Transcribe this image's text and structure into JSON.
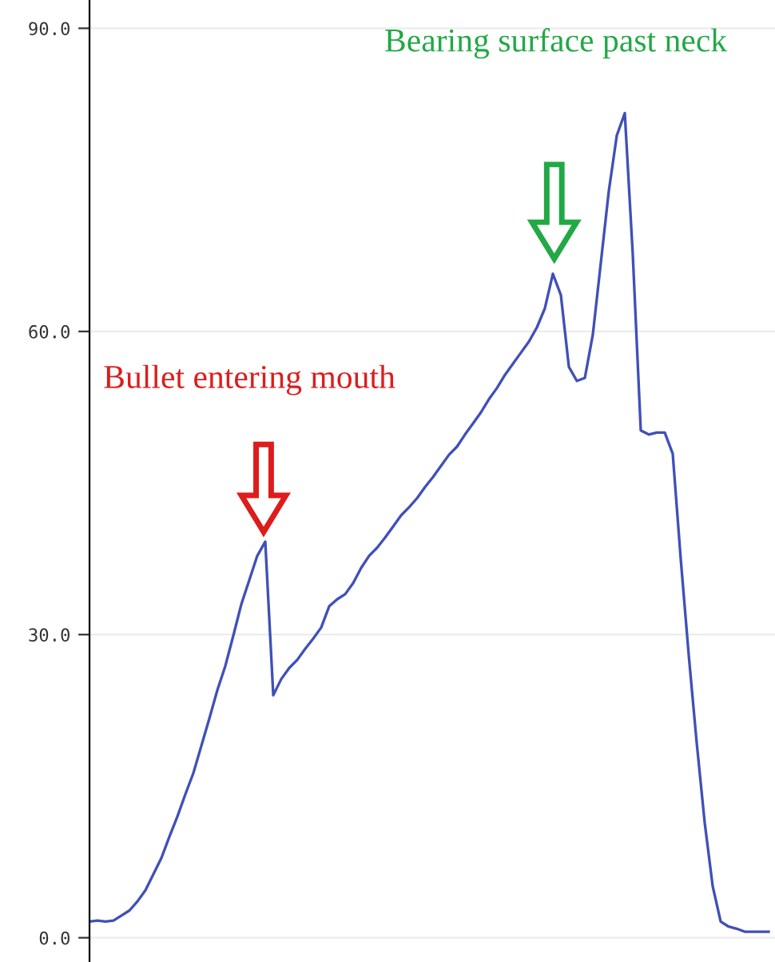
{
  "chart_data": {
    "type": "line",
    "categories": [
      null,
      null,
      null,
      null,
      null,
      null,
      null,
      null,
      null,
      null,
      null,
      null,
      null,
      null,
      null,
      null,
      null,
      null,
      null,
      null,
      null,
      null,
      null,
      null,
      null,
      null,
      null,
      null,
      null,
      null,
      null,
      null,
      null,
      null,
      null,
      null,
      null,
      null,
      null,
      null,
      null,
      null,
      null,
      null,
      null,
      null,
      null,
      null,
      null,
      null,
      null,
      null,
      null,
      null,
      null,
      null,
      null,
      null,
      null,
      null,
      null,
      null,
      null,
      null,
      null,
      null,
      null,
      null,
      null,
      null,
      null,
      null,
      null,
      null,
      null,
      null,
      null,
      null,
      null,
      null,
      null,
      null,
      null,
      null,
      null,
      null
    ],
    "series": [
      {
        "color": "#4050b8",
        "values": [
          1.6,
          1.7,
          1.6,
          1.7,
          2.2,
          2.7,
          3.6,
          4.7,
          6.3,
          7.9,
          10,
          12,
          14.2,
          16.3,
          19,
          21.7,
          24.5,
          26.9,
          29.9,
          33,
          35.4,
          37.8,
          39.2,
          24,
          25.6,
          26.7,
          27.5,
          28.6,
          29.6,
          30.7,
          32.8,
          33.5,
          34,
          35.1,
          36.6,
          37.8,
          38.6,
          39.6,
          40.7,
          41.8,
          42.6,
          43.5,
          44.6,
          45.6,
          46.7,
          47.8,
          48.6,
          49.8,
          50.9,
          52,
          53.3,
          54.4,
          55.7,
          56.8,
          57.9,
          59,
          60.4,
          62.3,
          65.7,
          63.6,
          56.5,
          55.1,
          55.4,
          59.7,
          66.8,
          73.9,
          79.4,
          81.6,
          67.6,
          50.2,
          49.8,
          50,
          50,
          47.9,
          37.5,
          28,
          19.3,
          11.4,
          5.1,
          1.6,
          1.1,
          0.9,
          0.6,
          0.6,
          0.6,
          0.6
        ]
      }
    ],
    "ylim": [
      -2.4,
      92.8
    ],
    "yticks": [
      {
        "value": 0,
        "label": "0.0"
      },
      {
        "value": 30,
        "label": "30.0"
      },
      {
        "value": 60,
        "label": "60.0"
      },
      {
        "value": 90,
        "label": "90.0"
      }
    ],
    "tick_labels": "y",
    "grid": "y",
    "marker": "none",
    "line_style": "solid",
    "annotations": [
      "Bullet entering mouth",
      "Bearing surface past neck"
    ]
  }
}
